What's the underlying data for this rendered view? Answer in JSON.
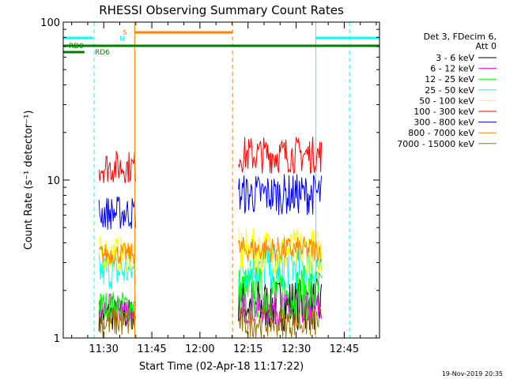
{
  "chart_data": {
    "type": "line",
    "title": "RHESSI Observing Summary Count Rates",
    "xlabel": "Start Time (02-Apr-18 11:17:22)",
    "ylabel": "Count Rate (s⁻¹ detector⁻¹)",
    "y_scale": "log",
    "ylim": [
      1,
      100
    ],
    "xlim": [
      "11:17:22",
      "12:56:00"
    ],
    "x_ticks": [
      "11:30",
      "11:45",
      "12:00",
      "12:15",
      "12:30",
      "12:45"
    ],
    "y_ticks": [
      "1",
      "10",
      "100"
    ],
    "grid": false,
    "legend_position": "right",
    "legend_header": [
      "Det 3, FDecim 6,",
      "Att 0"
    ],
    "series": [
      {
        "name": "3 - 6 keV",
        "color": "#000000",
        "segments": [
          {
            "x": [
              "11:28:30",
              "11:40:00"
            ],
            "y": [
              1.1,
              1.8
            ]
          },
          {
            "x": [
              "12:12:00",
              "12:38:00"
            ],
            "y": [
              1.1,
              2.4
            ]
          }
        ]
      },
      {
        "name": "6 - 12 keV",
        "color": "#ff00ff",
        "segments": [
          {
            "x": [
              "11:28:30",
              "11:40:00"
            ],
            "y": [
              1.2,
              1.9
            ]
          },
          {
            "x": [
              "12:12:00",
              "12:38:00"
            ],
            "y": [
              1.2,
              2.0
            ]
          }
        ]
      },
      {
        "name": "12 - 25 keV",
        "color": "#00ff00",
        "segments": [
          {
            "x": [
              "11:28:30",
              "11:40:00"
            ],
            "y": [
              1.3,
              2.0
            ]
          },
          {
            "x": [
              "12:12:00",
              "12:38:00"
            ],
            "y": [
              1.3,
              2.9
            ]
          }
        ]
      },
      {
        "name": "25 - 50 keV",
        "color": "#00ffff",
        "segments": [
          {
            "x": [
              "11:28:30",
              "11:40:00"
            ],
            "y": [
              2.0,
              3.5
            ]
          },
          {
            "x": [
              "12:12:00",
              "12:38:00"
            ],
            "y": [
              2.0,
              4.0
            ]
          }
        ]
      },
      {
        "name": "50 - 100 keV",
        "color": "#ffff00",
        "segments": [
          {
            "x": [
              "11:28:30",
              "11:40:00"
            ],
            "y": [
              2.6,
              4.5
            ]
          },
          {
            "x": [
              "12:12:00",
              "12:38:00"
            ],
            "y": [
              2.5,
              5.0
            ]
          }
        ]
      },
      {
        "name": "100 - 300 keV",
        "color": "#ff0000",
        "segments": [
          {
            "x": [
              "11:28:30",
              "11:40:00"
            ],
            "y": [
              9.5,
              15.5
            ]
          },
          {
            "x": [
              "12:12:00",
              "12:38:00"
            ],
            "y": [
              11.0,
              19.0
            ]
          }
        ]
      },
      {
        "name": "300 - 800 keV",
        "color": "#0000ff",
        "segments": [
          {
            "x": [
              "11:28:30",
              "11:40:00"
            ],
            "y": [
              4.8,
              8.0
            ]
          },
          {
            "x": [
              "12:12:00",
              "12:38:00"
            ],
            "y": [
              6.0,
              11.0
            ]
          }
        ]
      },
      {
        "name": "800 - 7000 keV",
        "color": "#ff8000",
        "segments": [
          {
            "x": [
              "11:28:30",
              "11:40:00"
            ],
            "y": [
              2.9,
              4.0
            ]
          },
          {
            "x": [
              "12:12:00",
              "12:38:00"
            ],
            "y": [
              3.0,
              4.4
            ]
          }
        ]
      },
      {
        "name": "7000 - 15000 keV",
        "color": "#a07000",
        "segments": [
          {
            "x": [
              "11:28:30",
              "11:40:00"
            ],
            "y": [
              1.0,
              1.6
            ]
          },
          {
            "x": [
              "12:12:00",
              "12:38:00"
            ],
            "y": [
              1.0,
              1.6
            ]
          }
        ]
      }
    ],
    "flags": [
      {
        "label": "N",
        "color": "#00ffff",
        "segments": [
          [
            "11:17:22",
            "11:26:40"
          ],
          [
            "12:36:10",
            "12:56:00"
          ]
        ]
      },
      {
        "label": "S",
        "color": "#ff8000",
        "segments": [
          [
            "11:39:40",
            "12:10:10"
          ]
        ]
      },
      {
        "label": "RD0",
        "color": "#008000",
        "segments": [
          [
            "11:17:22",
            "12:56:00"
          ]
        ]
      },
      {
        "label": "RD6",
        "color": "#008000",
        "segments": [
          [
            "11:17:22",
            "11:24:00"
          ]
        ]
      }
    ],
    "markers": [
      {
        "x": "11:17:22",
        "color": "#00ffff",
        "style": "solid"
      },
      {
        "x": "11:27:00",
        "color": "#00ffff",
        "style": "dashed"
      },
      {
        "x": "11:39:40",
        "color": "#ff8000",
        "style": "solid"
      },
      {
        "x": "12:10:10",
        "color": "#ff8000",
        "style": "dashed"
      },
      {
        "x": "12:36:10",
        "color": "#00ffff",
        "style": "solid"
      },
      {
        "x": "12:46:40",
        "color": "#00ffff",
        "style": "dashed"
      }
    ]
  },
  "footer": {
    "timestamp": "19-Nov-2019 20:35"
  }
}
